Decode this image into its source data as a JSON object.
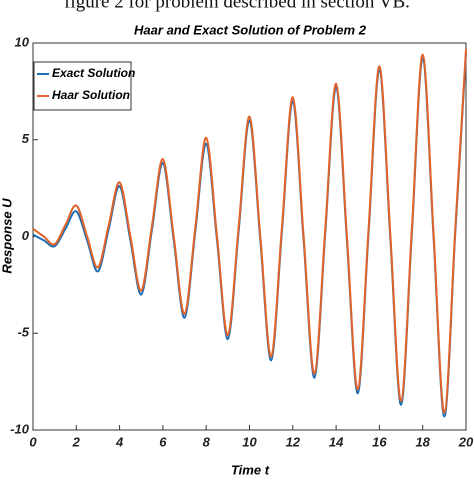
{
  "caption": "figure 2 for problem described in section VB.",
  "chart_data": {
    "type": "line",
    "title": "Haar and Exact Solution of Problem 2",
    "x_label": "Time t",
    "y_label": "Response U",
    "x": [
      0,
      0.5,
      1,
      1.5,
      2,
      2.5,
      3,
      3.5,
      4,
      4.5,
      5,
      5.5,
      6,
      6.5,
      7,
      7.5,
      8,
      8.5,
      9,
      9.5,
      10,
      10.5,
      11,
      11.5,
      12,
      12.5,
      13,
      13.5,
      14,
      14.5,
      15,
      15.5,
      16,
      16.5,
      17,
      17.5,
      18,
      18.5,
      19,
      19.5,
      20
    ],
    "series": [
      {
        "name": "Exact Solution",
        "color": "#1f6fb5",
        "values": [
          0.1,
          -0.2,
          -0.5,
          0.4,
          1.3,
          -0.2,
          -1.8,
          0.4,
          2.6,
          -0.2,
          -3.0,
          0.4,
          3.8,
          -0.2,
          -4.2,
          0.3,
          4.8,
          -0.2,
          -5.3,
          0.3,
          6.0,
          -0.2,
          -6.4,
          0.3,
          7.0,
          -0.2,
          -7.3,
          0.2,
          7.7,
          -0.2,
          -8.1,
          0.2,
          8.6,
          0,
          -8.7,
          0.2,
          9.2,
          0,
          -9.3,
          0.1,
          9.5
        ]
      },
      {
        "name": "Haar Solution",
        "color": "#e2632a",
        "values": [
          0.4,
          0,
          -0.4,
          0.6,
          1.6,
          0,
          -1.6,
          0.6,
          2.8,
          0,
          -2.8,
          0.6,
          4.0,
          0,
          -4.0,
          0.5,
          5.1,
          0,
          -5.1,
          0.5,
          6.2,
          0,
          -6.2,
          0.5,
          7.2,
          0,
          -7.1,
          0.4,
          7.9,
          0,
          -7.9,
          0.4,
          8.8,
          0.2,
          -8.5,
          0.4,
          9.4,
          0.2,
          -9.1,
          0.3,
          9.7
        ]
      }
    ],
    "xlim": [
      0,
      20
    ],
    "ylim": [
      -10,
      10
    ],
    "xticks": [
      0,
      2,
      4,
      6,
      8,
      10,
      12,
      14,
      16,
      18,
      20
    ],
    "yticks": [
      -10,
      -5,
      0,
      5,
      10
    ],
    "grid": false,
    "legend": "upper left"
  }
}
